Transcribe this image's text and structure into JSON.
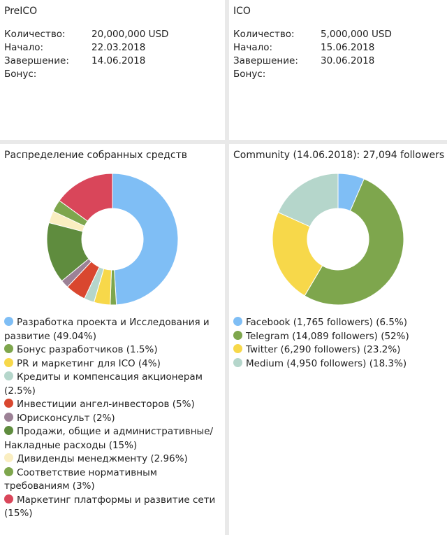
{
  "preico": {
    "title": "PreICO",
    "rows": [
      {
        "label": "Количество:",
        "value": "20,000,000 USD"
      },
      {
        "label": "Начало:",
        "value": "22.03.2018"
      },
      {
        "label": "Завершение:",
        "value": "14.06.2018"
      },
      {
        "label": "Бонус:",
        "value": ""
      }
    ]
  },
  "ico": {
    "title": "ICO",
    "rows": [
      {
        "label": "Количество:",
        "value": "5,000,000 USD"
      },
      {
        "label": "Начало:",
        "value": "15.06.2018"
      },
      {
        "label": "Завершение:",
        "value": "30.06.2018"
      },
      {
        "label": "Бонус:",
        "value": ""
      }
    ]
  },
  "chart_data": [
    {
      "type": "pie",
      "title": "Распределение собранных средств",
      "donut": true,
      "series": [
        {
          "name": "Разработка проекта и Исследования и развитие (49.04%)",
          "value": 49.04,
          "color": "#7fbef5"
        },
        {
          "name": "Бонус разработчиков (1.5%)",
          "value": 1.5,
          "color": "#7ea64d"
        },
        {
          "name": "PR и маркетинг для ICO (4%)",
          "value": 4,
          "color": "#f7d84a"
        },
        {
          "name": "Кредиты и компенсация акционерам (2.5%)",
          "value": 2.5,
          "color": "#b5d6cb"
        },
        {
          "name": "Инвестиции ангел-инвесторов (5%)",
          "value": 5,
          "color": "#d9472f"
        },
        {
          "name": "Юрисконсульт (2%)",
          "value": 2,
          "color": "#9c8196"
        },
        {
          "name": "Продажи, общие и административные/Накладные расходы (15%)",
          "value": 15,
          "color": "#5f8c3e"
        },
        {
          "name": "Дивиденды менеджменту (2.96%)",
          "value": 2.96,
          "color": "#faeec1"
        },
        {
          "name": "Соответствие нормативным требованиям (3%)",
          "value": 3,
          "color": "#7ea64d"
        },
        {
          "name": "Маркетинг платформы и развитие сети (15%)",
          "value": 15,
          "color": "#d9465a"
        }
      ]
    },
    {
      "type": "pie",
      "title": "Community (14.06.2018): 27,094 followers",
      "donut": true,
      "series": [
        {
          "name": "Facebook (1,765 followers) (6.5%)",
          "value": 6.5,
          "color": "#7fbef5"
        },
        {
          "name": "Telegram (14,089 followers) (52%)",
          "value": 52,
          "color": "#7ea64d"
        },
        {
          "name": "Twitter (6,290 followers) (23.2%)",
          "value": 23.2,
          "color": "#f7d84a"
        },
        {
          "name": "Medium (4,950 followers) (18.3%)",
          "value": 18.3,
          "color": "#b5d6cb"
        }
      ]
    }
  ]
}
